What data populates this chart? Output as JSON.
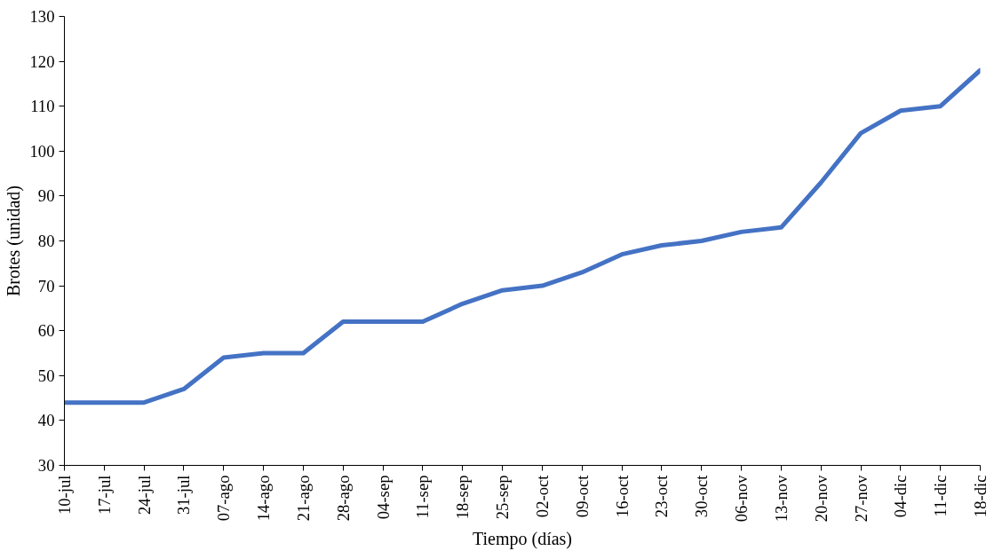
{
  "chart_data": {
    "type": "line",
    "xlabel": "Tiempo (días)",
    "ylabel": "Brotes (unidad)",
    "categories": [
      "10-jul",
      "17-jul",
      "24-jul",
      "31-jul",
      "07-ago",
      "14-ago",
      "21-ago",
      "28-ago",
      "04-sep",
      "11-sep",
      "18-sep",
      "25-sep",
      "02-oct",
      "09-oct",
      "16-oct",
      "23-oct",
      "30-oct",
      "06-nov",
      "13-nov",
      "20-nov",
      "27-nov",
      "04-dic",
      "11-dic",
      "18-dic"
    ],
    "series": [
      {
        "color": "#4472c4",
        "values": [
          44,
          44,
          44,
          47,
          54,
          55,
          55,
          62,
          62,
          62,
          66,
          69,
          70,
          73,
          77,
          79,
          80,
          82,
          83,
          93,
          104,
          109,
          110,
          118
        ]
      }
    ],
    "ylim": [
      30,
      130
    ],
    "yticks": [
      30,
      40,
      50,
      60,
      70,
      80,
      90,
      100,
      110,
      120,
      130
    ],
    "grid": false,
    "marker": "none",
    "line_style": "solid"
  }
}
